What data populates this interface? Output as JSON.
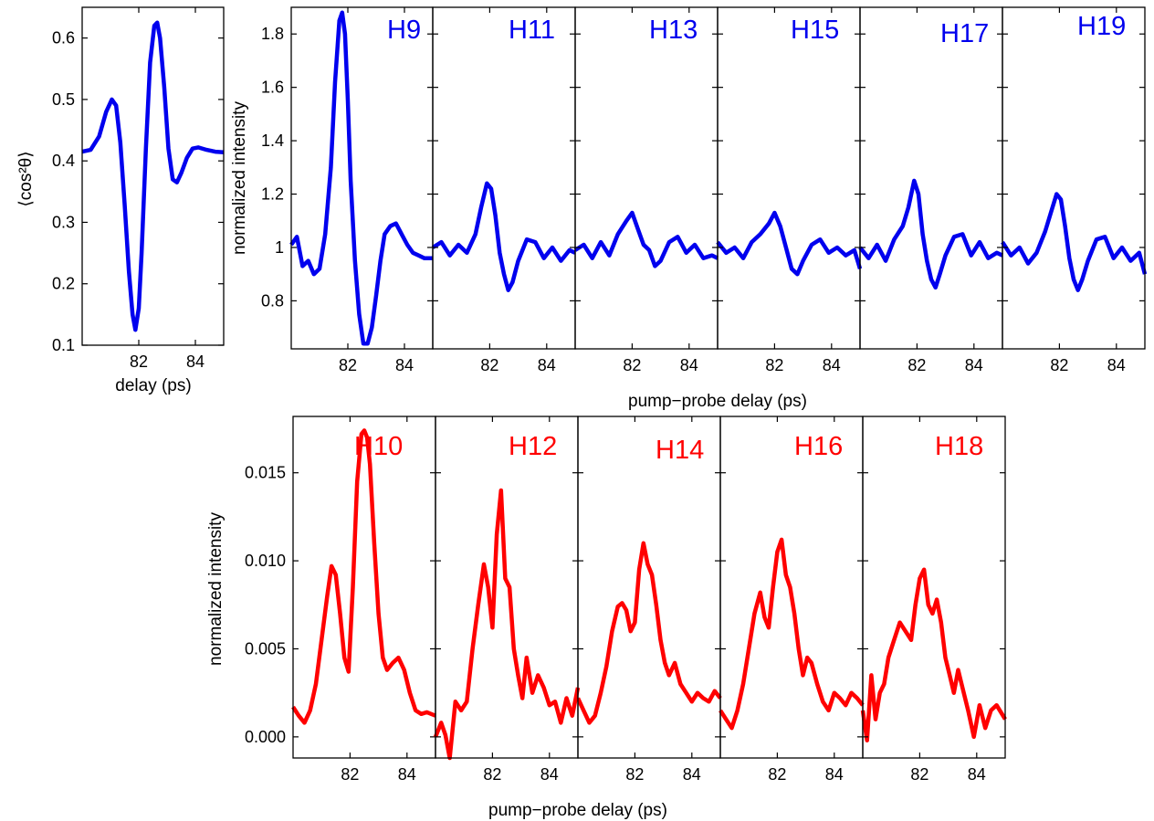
{
  "chart_data": [
    {
      "id": "alignment",
      "type": "line",
      "xlabel": "delay (ps)",
      "ylabel": "⟨cos²θ⟩",
      "xlim": [
        80,
        85
      ],
      "ylim": [
        0.1,
        0.65
      ],
      "xticks": [
        82,
        84
      ],
      "yticks": [
        0.1,
        0.2,
        0.3,
        0.4,
        0.5,
        0.6
      ],
      "ytick_labels": [
        "0.1",
        "0.2",
        "0.3",
        "0.4",
        "0.5",
        "0.6"
      ],
      "grid": false,
      "color": "#0000ee",
      "series": [
        {
          "x": [
            80.0,
            80.3,
            80.6,
            80.85,
            81.05,
            81.2,
            81.35,
            81.5,
            81.65,
            81.78,
            81.88,
            82.0,
            82.1,
            82.25,
            82.4,
            82.55,
            82.65,
            82.75,
            82.9,
            83.05,
            83.2,
            83.35,
            83.5,
            83.7,
            83.9,
            84.1,
            84.4,
            84.7,
            85.0
          ],
          "y": [
            0.415,
            0.418,
            0.44,
            0.48,
            0.5,
            0.49,
            0.43,
            0.33,
            0.22,
            0.15,
            0.125,
            0.16,
            0.25,
            0.42,
            0.56,
            0.62,
            0.625,
            0.6,
            0.52,
            0.42,
            0.37,
            0.365,
            0.38,
            0.405,
            0.42,
            0.422,
            0.418,
            0.415,
            0.414
          ]
        }
      ]
    },
    {
      "id": "odd-harmonics",
      "type": "line",
      "xlabel": "pump−probe delay (ps)",
      "ylabel": "normalized intensity",
      "xlim": [
        80,
        85
      ],
      "ylim": [
        0.62,
        1.9
      ],
      "xticks": [
        82,
        84
      ],
      "yticks": [
        0.8,
        1,
        1.2,
        1.4,
        1.6,
        1.8
      ],
      "ytick_labels": [
        "0.8",
        "1",
        "1.2",
        "1.4",
        "1.6",
        "1.8"
      ],
      "grid": false,
      "color": "#0000ee",
      "panels": [
        {
          "label": "H9",
          "x": [
            80.0,
            80.2,
            80.4,
            80.6,
            80.8,
            81.0,
            81.2,
            81.4,
            81.55,
            81.7,
            81.8,
            81.9,
            82.0,
            82.1,
            82.25,
            82.4,
            82.55,
            82.7,
            82.85,
            83.0,
            83.15,
            83.3,
            83.5,
            83.7,
            83.9,
            84.1,
            84.3,
            84.5,
            84.7,
            85.0
          ],
          "y": [
            1.01,
            1.04,
            0.93,
            0.95,
            0.9,
            0.92,
            1.05,
            1.3,
            1.62,
            1.85,
            1.88,
            1.8,
            1.55,
            1.25,
            0.95,
            0.75,
            0.64,
            0.64,
            0.7,
            0.82,
            0.95,
            1.05,
            1.08,
            1.09,
            1.05,
            1.01,
            0.98,
            0.97,
            0.96,
            0.96
          ]
        },
        {
          "label": "H11",
          "x": [
            80.0,
            80.3,
            80.6,
            80.9,
            81.2,
            81.5,
            81.7,
            81.9,
            82.05,
            82.2,
            82.35,
            82.5,
            82.65,
            82.8,
            83.0,
            83.3,
            83.6,
            83.9,
            84.2,
            84.5,
            84.8,
            85.0
          ],
          "y": [
            1.0,
            1.02,
            0.97,
            1.01,
            0.98,
            1.05,
            1.15,
            1.24,
            1.22,
            1.12,
            0.98,
            0.9,
            0.84,
            0.87,
            0.95,
            1.03,
            1.02,
            0.96,
            1.0,
            0.95,
            0.99,
            0.98
          ]
        },
        {
          "label": "H13",
          "x": [
            80.0,
            80.3,
            80.6,
            80.9,
            81.2,
            81.5,
            81.8,
            82.0,
            82.2,
            82.4,
            82.6,
            82.8,
            83.0,
            83.3,
            83.6,
            83.9,
            84.2,
            84.5,
            84.8,
            85.0
          ],
          "y": [
            0.99,
            1.01,
            0.96,
            1.02,
            0.97,
            1.05,
            1.1,
            1.13,
            1.07,
            1.01,
            0.99,
            0.93,
            0.95,
            1.02,
            1.04,
            0.98,
            1.01,
            0.96,
            0.97,
            0.96
          ]
        },
        {
          "label": "H15",
          "x": [
            80.0,
            80.3,
            80.6,
            80.9,
            81.2,
            81.5,
            81.8,
            82.0,
            82.2,
            82.4,
            82.6,
            82.8,
            83.0,
            83.3,
            83.6,
            83.9,
            84.2,
            84.5,
            84.8,
            85.0
          ],
          "y": [
            1.02,
            0.98,
            1.0,
            0.96,
            1.02,
            1.05,
            1.09,
            1.13,
            1.08,
            1.0,
            0.92,
            0.9,
            0.95,
            1.01,
            1.03,
            0.98,
            1.0,
            0.97,
            0.99,
            0.92
          ]
        },
        {
          "label": "H17",
          "x": [
            80.0,
            80.3,
            80.6,
            80.9,
            81.2,
            81.5,
            81.7,
            81.9,
            82.05,
            82.2,
            82.35,
            82.5,
            82.65,
            82.8,
            83.0,
            83.3,
            83.6,
            83.9,
            84.2,
            84.5,
            84.8,
            85.0
          ],
          "y": [
            1.0,
            0.96,
            1.01,
            0.95,
            1.03,
            1.08,
            1.15,
            1.25,
            1.2,
            1.05,
            0.95,
            0.88,
            0.85,
            0.9,
            0.97,
            1.04,
            1.05,
            0.97,
            1.02,
            0.96,
            0.98,
            0.97
          ]
        },
        {
          "label": "H19",
          "x": [
            80.0,
            80.3,
            80.6,
            80.9,
            81.2,
            81.5,
            81.7,
            81.9,
            82.05,
            82.2,
            82.35,
            82.5,
            82.65,
            82.8,
            83.0,
            83.3,
            83.6,
            83.9,
            84.2,
            84.5,
            84.8,
            85.0
          ],
          "y": [
            1.02,
            0.97,
            1.0,
            0.94,
            0.98,
            1.06,
            1.13,
            1.2,
            1.18,
            1.08,
            0.96,
            0.88,
            0.84,
            0.88,
            0.95,
            1.03,
            1.04,
            0.96,
            1.0,
            0.95,
            0.98,
            0.9
          ]
        }
      ]
    },
    {
      "id": "even-harmonics",
      "type": "line",
      "xlabel": "pump−probe delay (ps)",
      "ylabel": "normalized intensity",
      "xlim": [
        80,
        85
      ],
      "ylim": [
        -0.0012,
        0.0182
      ],
      "xticks": [
        82,
        84
      ],
      "yticks": [
        0.0,
        0.005,
        0.01,
        0.015
      ],
      "ytick_labels": [
        "0.000",
        "0.005",
        "0.010",
        "0.015"
      ],
      "grid": false,
      "color": "#ff0000",
      "panels": [
        {
          "label": "H10",
          "x": [
            80.0,
            80.2,
            80.4,
            80.6,
            80.8,
            81.0,
            81.2,
            81.35,
            81.5,
            81.65,
            81.8,
            81.95,
            82.1,
            82.25,
            82.4,
            82.5,
            82.6,
            82.7,
            82.85,
            83.0,
            83.15,
            83.3,
            83.5,
            83.7,
            83.9,
            84.1,
            84.3,
            84.5,
            84.7,
            85.0
          ],
          "y": [
            0.0017,
            0.0012,
            0.0008,
            0.0015,
            0.003,
            0.0055,
            0.008,
            0.0097,
            0.0092,
            0.007,
            0.0045,
            0.0037,
            0.0085,
            0.0145,
            0.0172,
            0.0174,
            0.017,
            0.0155,
            0.011,
            0.007,
            0.0045,
            0.0038,
            0.0042,
            0.0045,
            0.0038,
            0.0025,
            0.0015,
            0.0013,
            0.0014,
            0.0012
          ]
        },
        {
          "label": "H12",
          "x": [
            80.0,
            80.2,
            80.35,
            80.5,
            80.7,
            80.9,
            81.1,
            81.3,
            81.5,
            81.7,
            81.85,
            82.0,
            82.15,
            82.3,
            82.45,
            82.6,
            82.75,
            82.9,
            83.05,
            83.2,
            83.4,
            83.6,
            83.8,
            84.0,
            84.2,
            84.4,
            84.6,
            84.8,
            85.0
          ],
          "y": [
            0.0,
            0.0008,
            0.0001,
            -0.0012,
            0.002,
            0.0015,
            0.002,
            0.005,
            0.0075,
            0.0098,
            0.0085,
            0.0062,
            0.0115,
            0.014,
            0.009,
            0.0085,
            0.005,
            0.0035,
            0.0022,
            0.0045,
            0.0025,
            0.0035,
            0.0028,
            0.0018,
            0.002,
            0.0008,
            0.0022,
            0.0012,
            0.0028
          ]
        },
        {
          "label": "H14",
          "x": [
            80.0,
            80.2,
            80.4,
            80.6,
            80.8,
            81.0,
            81.2,
            81.4,
            81.55,
            81.7,
            81.85,
            82.0,
            82.15,
            82.3,
            82.45,
            82.6,
            82.75,
            82.9,
            83.05,
            83.2,
            83.4,
            83.6,
            83.8,
            84.0,
            84.2,
            84.4,
            84.6,
            84.8,
            85.0
          ],
          "y": [
            0.0022,
            0.0015,
            0.0008,
            0.0012,
            0.0025,
            0.004,
            0.006,
            0.0074,
            0.0076,
            0.0072,
            0.006,
            0.0065,
            0.0095,
            0.011,
            0.0098,
            0.0092,
            0.0075,
            0.0055,
            0.0042,
            0.0035,
            0.0042,
            0.003,
            0.0025,
            0.002,
            0.0025,
            0.0022,
            0.002,
            0.0026,
            0.0022
          ]
        },
        {
          "label": "H16",
          "x": [
            80.0,
            80.2,
            80.4,
            80.6,
            80.8,
            81.0,
            81.2,
            81.4,
            81.55,
            81.7,
            81.85,
            82.0,
            82.15,
            82.3,
            82.45,
            82.6,
            82.75,
            82.9,
            83.05,
            83.2,
            83.4,
            83.6,
            83.8,
            84.0,
            84.2,
            84.4,
            84.6,
            84.8,
            85.0
          ],
          "y": [
            0.0015,
            0.001,
            0.0005,
            0.0015,
            0.003,
            0.005,
            0.007,
            0.0082,
            0.0068,
            0.0062,
            0.0085,
            0.0105,
            0.0112,
            0.0092,
            0.0085,
            0.007,
            0.005,
            0.0035,
            0.0045,
            0.0042,
            0.003,
            0.002,
            0.0015,
            0.0025,
            0.0022,
            0.0018,
            0.0025,
            0.0022,
            0.0018
          ]
        },
        {
          "label": "H18",
          "x": [
            80.0,
            80.15,
            80.3,
            80.45,
            80.6,
            80.75,
            80.9,
            81.1,
            81.3,
            81.5,
            81.7,
            81.85,
            82.0,
            82.15,
            82.3,
            82.45,
            82.6,
            82.75,
            82.9,
            83.05,
            83.2,
            83.35,
            83.5,
            83.7,
            83.9,
            84.1,
            84.3,
            84.5,
            84.7,
            85.0
          ],
          "y": [
            0.0015,
            -0.0002,
            0.0035,
            0.001,
            0.0025,
            0.003,
            0.0045,
            0.0055,
            0.0065,
            0.006,
            0.0055,
            0.0075,
            0.009,
            0.0095,
            0.0075,
            0.007,
            0.0078,
            0.0065,
            0.0045,
            0.0035,
            0.0025,
            0.0038,
            0.0028,
            0.0015,
            0.0,
            0.0018,
            0.0005,
            0.0015,
            0.0018,
            0.001
          ]
        }
      ]
    }
  ]
}
